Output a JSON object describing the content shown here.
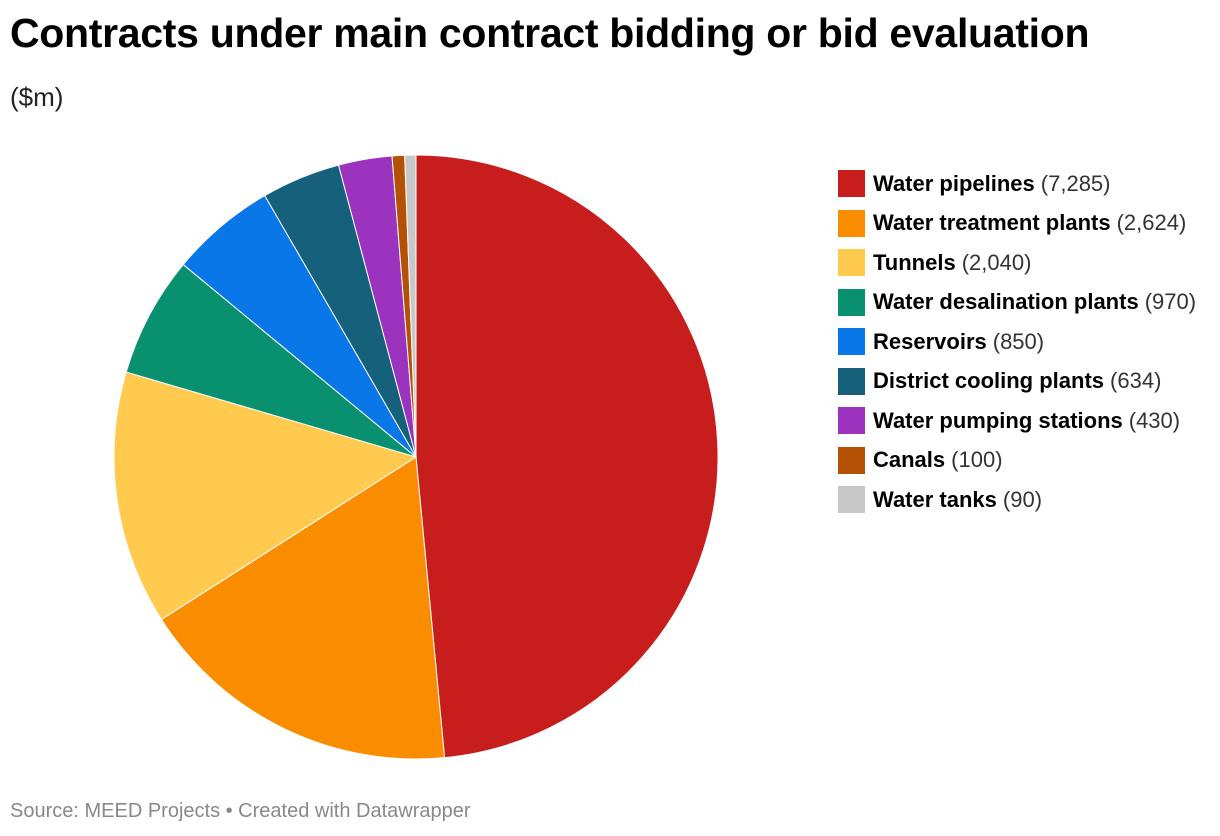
{
  "header": {
    "title": "Contracts under main contract bidding or bid evaluation",
    "subtitle": "($m)"
  },
  "footer": {
    "source": "Source: MEED Projects • Created with Datawrapper"
  },
  "chart_data": {
    "type": "pie",
    "title": "Contracts under main contract bidding or bid evaluation",
    "subtitle": "($m)",
    "legend_position": "right",
    "categories": [
      "Water pipelines",
      "Water treatment plants",
      "Tunnels",
      "Water desalination plants",
      "Reservoirs",
      "District cooling plants",
      "Water pumping stations",
      "Canals",
      "Water tanks"
    ],
    "values": [
      7285,
      2624,
      2040,
      970,
      850,
      634,
      430,
      100,
      90
    ],
    "value_labels": [
      "(7,285)",
      "(2,624)",
      "(2,040)",
      "(970)",
      "(850)",
      "(634)",
      "(430)",
      "(100)",
      "(90)"
    ],
    "colors": [
      "#c71e1d",
      "#fa8c00",
      "#ffca4d",
      "#09916f",
      "#0a77e8",
      "#15607a",
      "#9b33bf",
      "#b45104",
      "#c8c8c8"
    ]
  }
}
